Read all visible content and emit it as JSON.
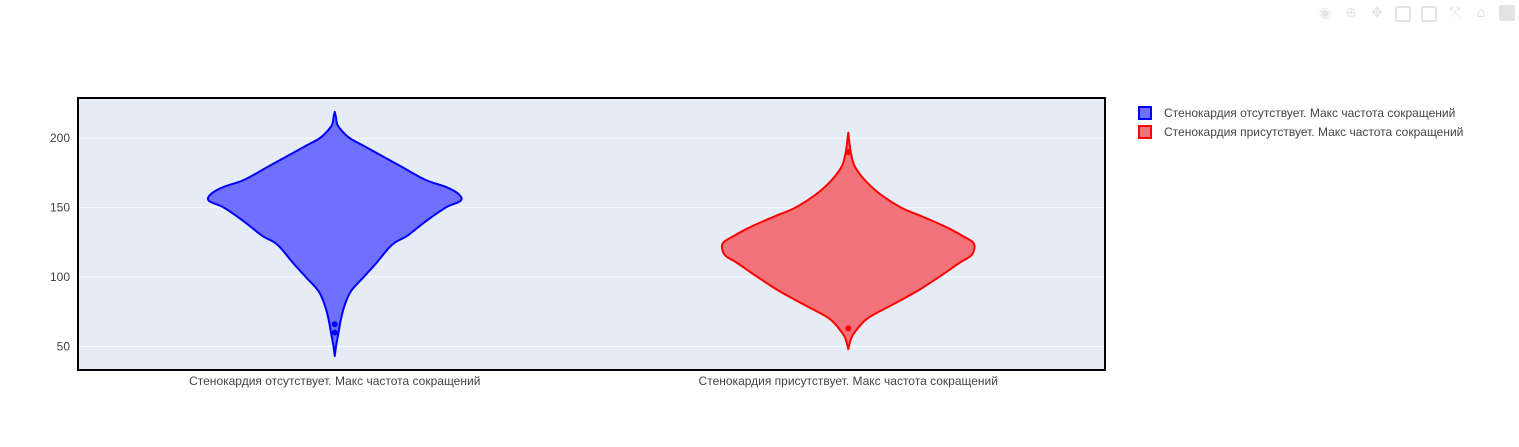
{
  "modebar": {
    "buttons": [
      {
        "name": "camera-icon",
        "glyph": "◉"
      },
      {
        "name": "zoom-icon",
        "glyph": "⊕"
      },
      {
        "name": "pan-icon",
        "glyph": "✥"
      },
      {
        "name": "zoom-in-icon",
        "glyph": "box"
      },
      {
        "name": "zoom-out-icon",
        "glyph": "box"
      },
      {
        "name": "autoscale-icon",
        "glyph": "⤧"
      },
      {
        "name": "reset-axes-icon",
        "glyph": "⌂"
      },
      {
        "name": "plotly-logo-icon",
        "glyph": "logo"
      }
    ]
  },
  "chart_data": {
    "type": "violin",
    "title": "",
    "xlabel": "",
    "ylabel": "",
    "ylim": [
      33,
      229
    ],
    "yticks": [
      50,
      100,
      150,
      200
    ],
    "grid": true,
    "legend_position": "right",
    "categories": [
      "Стенокардия отсутствует. Макс частота сокращений",
      "Стенокардия присутствует. Макс частота сокращений"
    ],
    "series": [
      {
        "name": "Стенокардия отсутствует. Макс частота сокращений",
        "category_index": 0,
        "line_color": "#0000ff",
        "fill_color": "#7070ff",
        "y_min": 43,
        "y_max": 219,
        "density": [
          [
            43,
            0.0
          ],
          [
            50,
            0.01
          ],
          [
            60,
            0.03
          ],
          [
            70,
            0.05
          ],
          [
            80,
            0.08
          ],
          [
            90,
            0.13
          ],
          [
            100,
            0.23
          ],
          [
            110,
            0.33
          ],
          [
            120,
            0.42
          ],
          [
            125,
            0.48
          ],
          [
            130,
            0.58
          ],
          [
            140,
            0.72
          ],
          [
            150,
            0.88
          ],
          [
            155,
            1.0
          ],
          [
            160,
            0.98
          ],
          [
            165,
            0.88
          ],
          [
            170,
            0.72
          ],
          [
            180,
            0.52
          ],
          [
            190,
            0.32
          ],
          [
            195,
            0.22
          ],
          [
            200,
            0.12
          ],
          [
            205,
            0.06
          ],
          [
            210,
            0.02
          ],
          [
            215,
            0.01
          ],
          [
            219,
            0.0
          ]
        ],
        "points": [
          66,
          60
        ]
      },
      {
        "name": "Стенокардия присутствует. Макс частота сокращений",
        "category_index": 1,
        "line_color": "#ff0000",
        "fill_color": "#f27379",
        "y_min": 48,
        "y_max": 204,
        "density": [
          [
            48,
            0.0
          ],
          [
            55,
            0.02
          ],
          [
            60,
            0.05
          ],
          [
            70,
            0.15
          ],
          [
            80,
            0.35
          ],
          [
            90,
            0.55
          ],
          [
            100,
            0.72
          ],
          [
            110,
            0.88
          ],
          [
            115,
            0.97
          ],
          [
            120,
            1.0
          ],
          [
            125,
            0.99
          ],
          [
            130,
            0.9
          ],
          [
            135,
            0.8
          ],
          [
            140,
            0.68
          ],
          [
            145,
            0.55
          ],
          [
            150,
            0.42
          ],
          [
            160,
            0.25
          ],
          [
            170,
            0.13
          ],
          [
            180,
            0.05
          ],
          [
            190,
            0.02
          ],
          [
            200,
            0.005
          ],
          [
            204,
            0.0
          ]
        ],
        "points": [
          63,
          190
        ]
      }
    ]
  }
}
